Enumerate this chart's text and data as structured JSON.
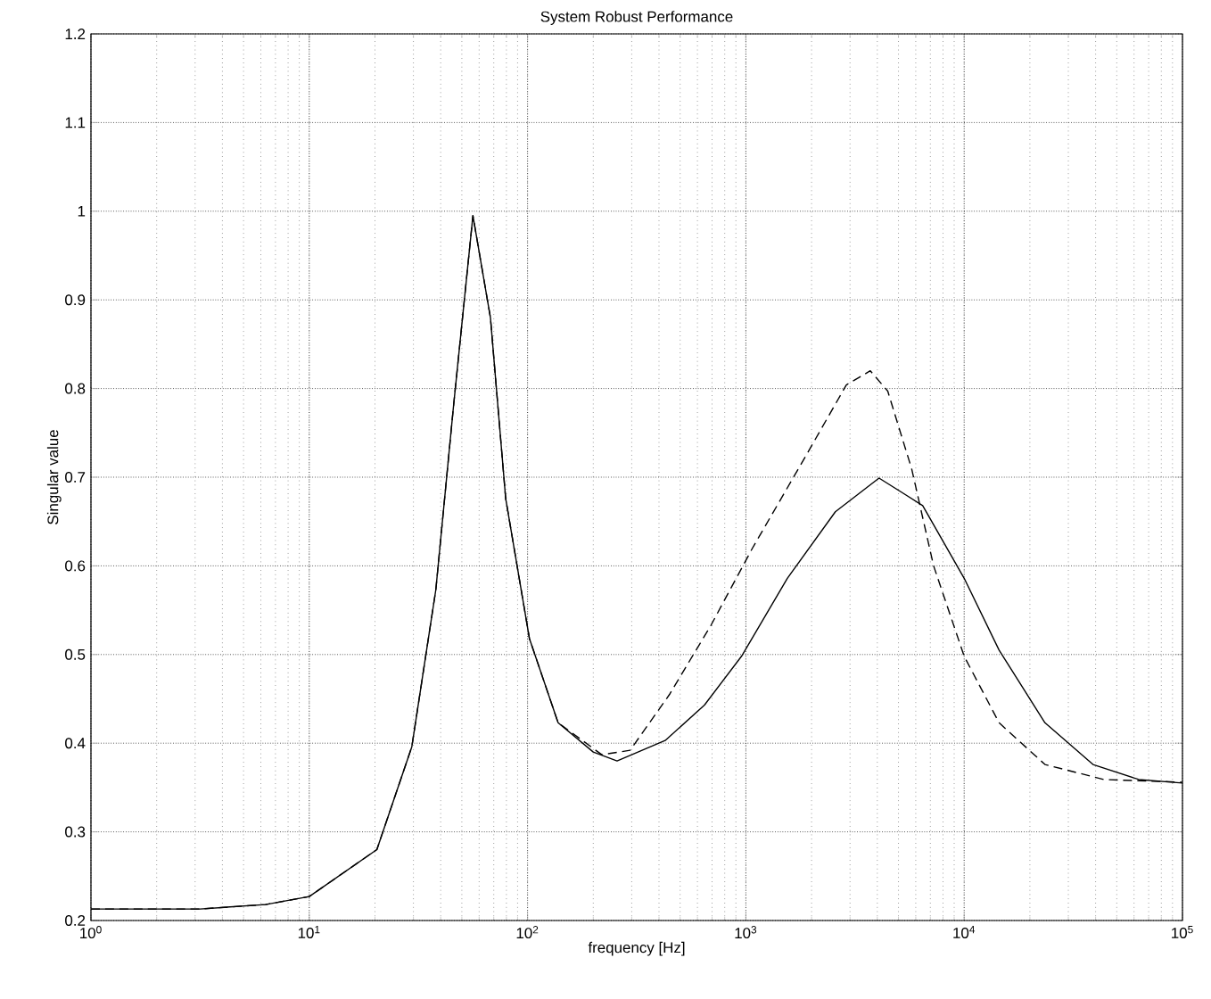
{
  "chart_data": {
    "type": "line",
    "title": "System Robust Performance",
    "xlabel": "frequency [Hz]",
    "ylabel": "Singular value",
    "log": "x",
    "grid": true,
    "xlim": [
      1,
      100000
    ],
    "ylim": [
      0.2,
      1.2
    ],
    "xticks": [
      {
        "value": 1,
        "label": "10$^{0}$"
      },
      {
        "value": 10,
        "label": "10$^{1}$"
      },
      {
        "value": 100,
        "label": "10$^{2}$"
      },
      {
        "value": 1000,
        "label": "10$^{3}$"
      },
      {
        "value": 10000,
        "label": "10$^{4}$"
      },
      {
        "value": 100000,
        "label": "10$^{5}$"
      }
    ],
    "yticks": [
      0.2,
      0.3,
      0.4,
      0.5,
      0.6,
      0.7,
      0.8,
      0.9,
      {
        "value": 1,
        "label": "1"
      },
      1.1,
      1.2
    ],
    "series": [
      {
        "color": "#000000",
        "line_style": "solid",
        "x": [
          1,
          3.16,
          6.3,
          10,
          20.4,
          29.5,
          38,
          45.7,
          56.2,
          67.6,
          79.4,
          102,
          138,
          200,
          257,
          427,
          646,
          955,
          1549,
          2570,
          4074,
          6457,
          10000,
          14454,
          23442,
          38905,
          63096,
          100000
        ],
        "values": [
          0.213,
          0.213,
          0.218,
          0.227,
          0.28,
          0.396,
          0.573,
          0.778,
          0.995,
          0.88,
          0.676,
          0.518,
          0.423,
          0.39,
          0.38,
          0.403,
          0.443,
          0.498,
          0.586,
          0.661,
          0.699,
          0.668,
          0.586,
          0.505,
          0.423,
          0.376,
          0.359,
          0.355
        ]
      },
      {
        "color": "#000000",
        "line_style": "dashed",
        "x": [
          1,
          3.16,
          6.3,
          10,
          20.4,
          29.5,
          38,
          45.7,
          56.2,
          67.6,
          79.4,
          102,
          138,
          219,
          295,
          447,
          692,
          1072,
          1862,
          2884,
          3715,
          4467,
          5754,
          7244,
          10000,
          14454,
          23442,
          43652,
          100000
        ],
        "values": [
          0.213,
          0.213,
          0.218,
          0.227,
          0.28,
          0.396,
          0.573,
          0.778,
          0.995,
          0.88,
          0.676,
          0.518,
          0.423,
          0.387,
          0.392,
          0.455,
          0.533,
          0.62,
          0.722,
          0.804,
          0.82,
          0.797,
          0.709,
          0.6,
          0.498,
          0.423,
          0.376,
          0.359,
          0.356
        ]
      }
    ]
  }
}
